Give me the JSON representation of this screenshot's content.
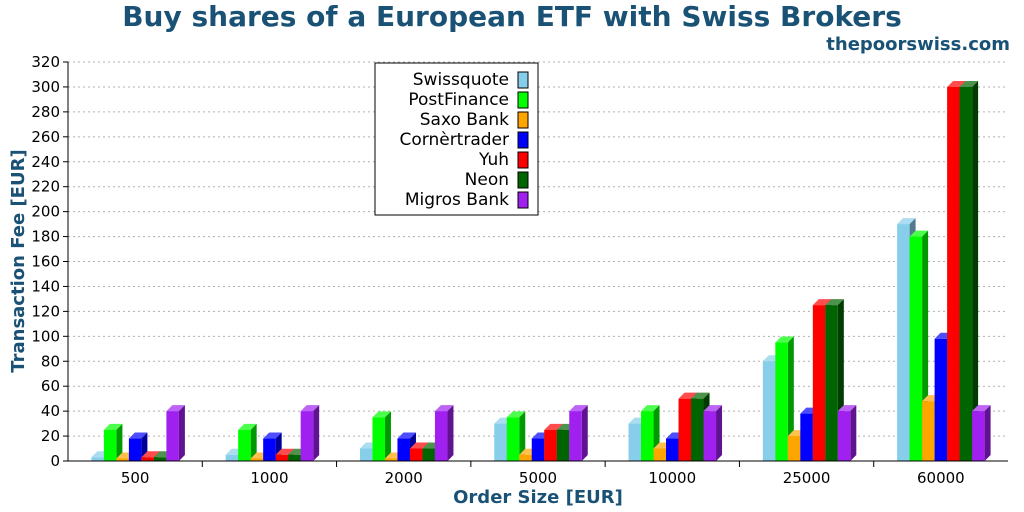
{
  "chart_data": {
    "type": "bar",
    "title": "Buy shares of a European ETF with Swiss Brokers",
    "subtitle": "thepoorswiss.com",
    "xlabel": "Order Size [EUR]",
    "ylabel": "Transaction Fee [EUR]",
    "ylim": [
      0,
      320
    ],
    "yticks": [
      0,
      20,
      40,
      60,
      80,
      100,
      120,
      140,
      160,
      180,
      200,
      220,
      240,
      260,
      280,
      300,
      320
    ],
    "grid": "horizontal dotted",
    "legend_position": "top-left",
    "categories": [
      "500",
      "1000",
      "2000",
      "5000",
      "10000",
      "25000",
      "60000"
    ],
    "series": [
      {
        "name": "Swissquote",
        "color": "#87ceeb",
        "values": [
          3,
          5,
          10,
          30,
          30,
          80,
          190
        ]
      },
      {
        "name": "PostFinance",
        "color": "#00ff00",
        "values": [
          25,
          25,
          35,
          35,
          40,
          95,
          180
        ]
      },
      {
        "name": "Saxo Bank",
        "color": "#ffa500",
        "values": [
          2,
          2,
          2,
          5,
          10,
          20,
          48
        ]
      },
      {
        "name": "Cornèrtrader",
        "color": "#0000ff",
        "values": [
          18,
          18,
          18,
          18,
          18,
          38,
          98
        ]
      },
      {
        "name": "Yuh",
        "color": "#ff0000",
        "values": [
          3,
          5,
          10,
          25,
          50,
          125,
          300
        ]
      },
      {
        "name": "Neon",
        "color": "#006400",
        "values": [
          3,
          5,
          10,
          25,
          50,
          125,
          300
        ]
      },
      {
        "name": "Migros Bank",
        "color": "#a020f0",
        "values": [
          40,
          40,
          40,
          40,
          40,
          40,
          40
        ]
      }
    ]
  }
}
